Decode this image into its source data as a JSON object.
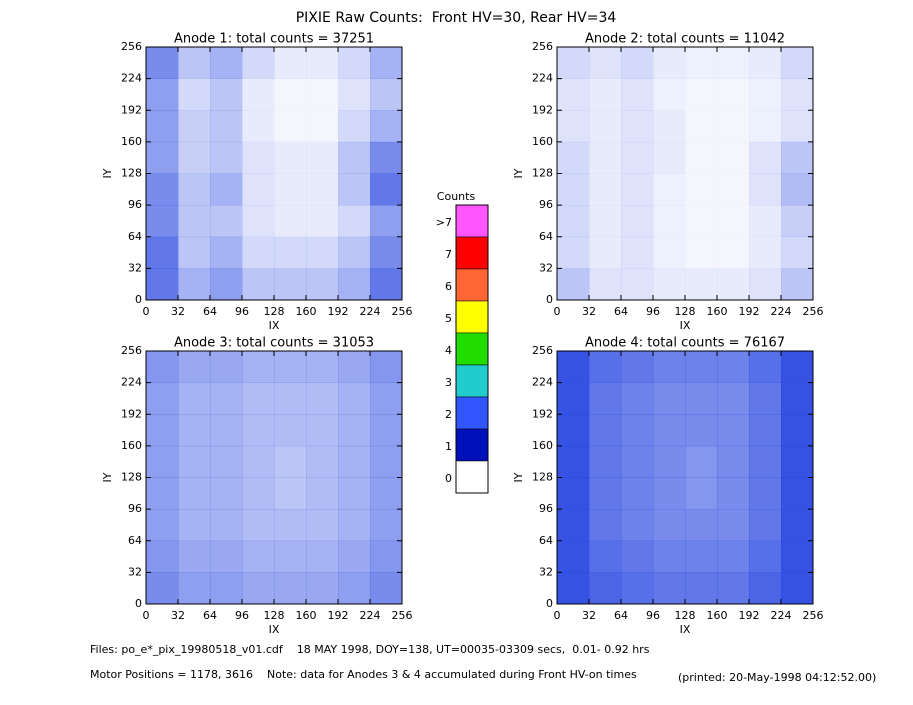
{
  "title": "PIXIE Raw Counts:  Front HV=30, Rear HV=34",
  "chart_data": [
    {
      "type": "heatmap",
      "title": "Anode 1: total counts = 37251",
      "xlabel": "IX",
      "ylabel": "IY",
      "color": "#1f3fe0",
      "xlim": [
        0,
        256
      ],
      "ylim": [
        0,
        256
      ],
      "xticks": [
        0,
        32,
        64,
        96,
        128,
        160,
        192,
        224,
        256
      ],
      "yticks": [
        0,
        32,
        64,
        96,
        128,
        160,
        192,
        224,
        256
      ],
      "density": [
        [
          0.7,
          0.4,
          0.5,
          0.3,
          0.3,
          0.3,
          0.4,
          0.7
        ],
        [
          0.7,
          0.3,
          0.4,
          0.2,
          0.2,
          0.2,
          0.3,
          0.6
        ],
        [
          0.6,
          0.3,
          0.3,
          0.15,
          0.1,
          0.1,
          0.2,
          0.5
        ],
        [
          0.6,
          0.3,
          0.4,
          0.15,
          0.1,
          0.1,
          0.3,
          0.7
        ],
        [
          0.5,
          0.25,
          0.3,
          0.15,
          0.1,
          0.1,
          0.3,
          0.6
        ],
        [
          0.5,
          0.25,
          0.3,
          0.1,
          0.05,
          0.05,
          0.2,
          0.4
        ],
        [
          0.5,
          0.2,
          0.3,
          0.1,
          0.05,
          0.05,
          0.15,
          0.3
        ],
        [
          0.6,
          0.3,
          0.4,
          0.2,
          0.1,
          0.1,
          0.2,
          0.4
        ]
      ]
    },
    {
      "type": "heatmap",
      "title": "Anode 2: total counts = 11042",
      "xlabel": "IX",
      "ylabel": "IY",
      "color": "#1f3fe0",
      "xlim": [
        0,
        256
      ],
      "ylim": [
        0,
        256
      ],
      "xticks": [
        0,
        32,
        64,
        96,
        128,
        160,
        192,
        224,
        256
      ],
      "yticks": [
        0,
        32,
        64,
        96,
        128,
        160,
        192,
        224,
        256
      ],
      "density": [
        [
          0.3,
          0.15,
          0.15,
          0.1,
          0.1,
          0.1,
          0.15,
          0.3
        ],
        [
          0.2,
          0.1,
          0.15,
          0.08,
          0.05,
          0.05,
          0.1,
          0.2
        ],
        [
          0.2,
          0.1,
          0.15,
          0.08,
          0.05,
          0.05,
          0.1,
          0.25
        ],
        [
          0.2,
          0.1,
          0.15,
          0.08,
          0.05,
          0.05,
          0.15,
          0.35
        ],
        [
          0.2,
          0.1,
          0.15,
          0.1,
          0.05,
          0.05,
          0.15,
          0.3
        ],
        [
          0.15,
          0.1,
          0.15,
          0.1,
          0.05,
          0.05,
          0.08,
          0.15
        ],
        [
          0.15,
          0.1,
          0.15,
          0.08,
          0.05,
          0.05,
          0.08,
          0.15
        ],
        [
          0.2,
          0.15,
          0.2,
          0.1,
          0.08,
          0.08,
          0.1,
          0.2
        ]
      ]
    },
    {
      "type": "heatmap",
      "title": "Anode 3: total counts = 31053",
      "xlabel": "IX",
      "ylabel": "IY",
      "color": "#1f3fe0",
      "xlim": [
        0,
        256
      ],
      "ylim": [
        0,
        256
      ],
      "xticks": [
        0,
        32,
        64,
        96,
        128,
        160,
        192,
        224,
        256
      ],
      "yticks": [
        0,
        32,
        64,
        96,
        128,
        160,
        192,
        224,
        256
      ],
      "density": [
        [
          0.6,
          0.5,
          0.5,
          0.45,
          0.45,
          0.45,
          0.5,
          0.6
        ],
        [
          0.55,
          0.45,
          0.45,
          0.4,
          0.4,
          0.4,
          0.45,
          0.55
        ],
        [
          0.5,
          0.4,
          0.4,
          0.35,
          0.35,
          0.35,
          0.4,
          0.5
        ],
        [
          0.5,
          0.4,
          0.4,
          0.35,
          0.3,
          0.35,
          0.4,
          0.5
        ],
        [
          0.5,
          0.4,
          0.4,
          0.35,
          0.3,
          0.35,
          0.4,
          0.5
        ],
        [
          0.5,
          0.4,
          0.4,
          0.35,
          0.35,
          0.35,
          0.4,
          0.5
        ],
        [
          0.5,
          0.4,
          0.4,
          0.35,
          0.35,
          0.35,
          0.4,
          0.5
        ],
        [
          0.55,
          0.45,
          0.45,
          0.4,
          0.4,
          0.4,
          0.45,
          0.55
        ]
      ]
    },
    {
      "type": "heatmap",
      "title": "Anode 4: total counts = 76167",
      "xlabel": "IX",
      "ylabel": "IY",
      "color": "#1f3fe0",
      "xlim": [
        0,
        256
      ],
      "ylim": [
        0,
        256
      ],
      "xticks": [
        0,
        32,
        64,
        96,
        128,
        160,
        192,
        224,
        256
      ],
      "yticks": [
        0,
        32,
        64,
        96,
        128,
        160,
        192,
        224,
        256
      ],
      "density": [
        [
          0.9,
          0.8,
          0.75,
          0.7,
          0.7,
          0.7,
          0.8,
          0.9
        ],
        [
          0.9,
          0.75,
          0.7,
          0.65,
          0.65,
          0.65,
          0.75,
          0.9
        ],
        [
          0.9,
          0.7,
          0.65,
          0.6,
          0.6,
          0.6,
          0.7,
          0.9
        ],
        [
          0.9,
          0.7,
          0.65,
          0.6,
          0.55,
          0.6,
          0.7,
          0.9
        ],
        [
          0.9,
          0.7,
          0.65,
          0.6,
          0.55,
          0.6,
          0.7,
          0.9
        ],
        [
          0.9,
          0.7,
          0.65,
          0.6,
          0.6,
          0.6,
          0.7,
          0.9
        ],
        [
          0.9,
          0.7,
          0.65,
          0.6,
          0.6,
          0.6,
          0.7,
          0.9
        ],
        [
          0.9,
          0.75,
          0.7,
          0.65,
          0.65,
          0.65,
          0.75,
          0.9
        ]
      ]
    }
  ],
  "colorbar": {
    "title": "Counts",
    "labels": [
      ">7",
      "7",
      "6",
      "5",
      "4",
      "3",
      "2",
      "1",
      "0"
    ],
    "colors": [
      "#ff55ff",
      "#ff0000",
      "#ff6633",
      "#ffff00",
      "#22dd00",
      "#22cccc",
      "#3355ff",
      "#0011bb",
      "#ffffff"
    ]
  },
  "footer": {
    "files": "Files: po_e*_pix_19980518_v01.cdf    18 MAY 1998, DOY=138, UT=00035-03309 secs,  0.01- 0.92 hrs",
    "motor": "Motor Positions = 1178, 3616    Note: data for Anodes 3 & 4 accumulated during Front HV-on times",
    "printed": "(printed: 20-May-1998 04:12:52.00)"
  }
}
